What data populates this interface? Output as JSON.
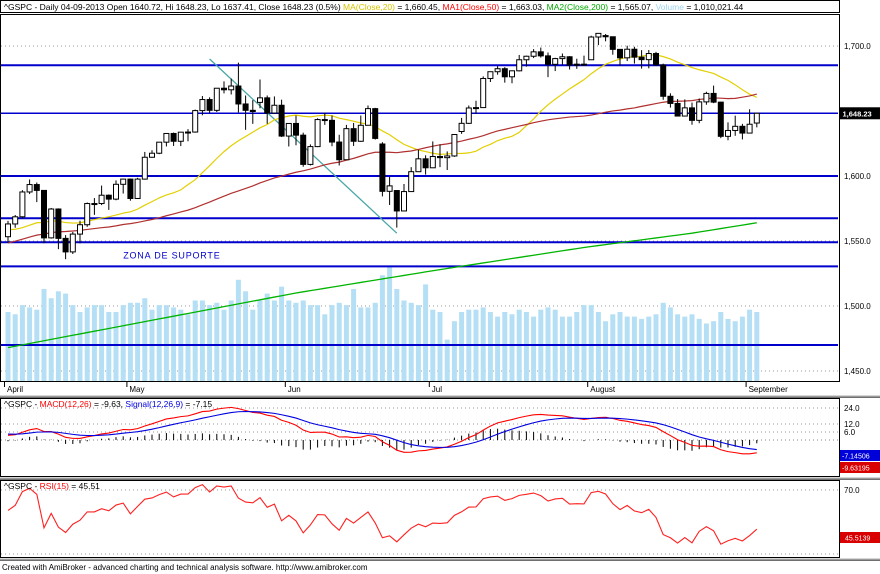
{
  "footer": {
    "text": "Created with AmiBroker - advanced charting and technical analysis software. http://www.amibroker.com"
  },
  "titles": {
    "main_segments": [
      {
        "text": "^GSPC - Daily 04-09-2013 Open 1640.72, Hi 1648.23, Lo 1637.41, Close 1648.23 (0.5%) ",
        "color": "#000000"
      },
      {
        "text": "MA(Close,20)",
        "color": "#d8c400"
      },
      {
        "text": " = 1,660.45, ",
        "color": "#000000"
      },
      {
        "text": "MA1(Close,50)",
        "color": "#ff0000"
      },
      {
        "text": " = 1,663.03, ",
        "color": "#000000"
      },
      {
        "text": "MA2(Close,200)",
        "color": "#00a800"
      },
      {
        "text": " = 1,565.07, ",
        "color": "#000000"
      },
      {
        "text": "Volume",
        "color": "#9fd4f0"
      },
      {
        "text": " = 1,010,021.44",
        "color": "#000000"
      }
    ],
    "macd_segments": [
      {
        "text": "^GSPC - ",
        "color": "#000000"
      },
      {
        "text": "MACD(12,26)",
        "color": "#ff0000"
      },
      {
        "text": " = -9.63, ",
        "color": "#000000"
      },
      {
        "text": "Signal(12,26,9)",
        "color": "#0000e0"
      },
      {
        "text": " = -7.15",
        "color": "#000000"
      }
    ],
    "rsi_segments": [
      {
        "text": "^GSPC - ",
        "color": "#000000"
      },
      {
        "text": "RSI(15)",
        "color": "#ff0000"
      },
      {
        "text": " = 45.51",
        "color": "#000000"
      }
    ]
  },
  "chart_data": {
    "type": "candlestick",
    "symbol": "^GSPC",
    "interval": "Daily",
    "last_bar": {
      "date": "04-09-2013",
      "open": 1640.72,
      "high": 1648.23,
      "low": 1637.41,
      "close": 1648.23,
      "change_pct": "0.5%"
    },
    "indicator_values": {
      "ma20": "1,660.45",
      "ma50": "1,663.03",
      "ma200": "1,565.07",
      "volume": "1,010,021.44",
      "macd": "-9.63",
      "macd_signal": "-7.15",
      "rsi": "45.51"
    },
    "main": {
      "ylim": [
        1443,
        1724.6
      ],
      "grid": true,
      "y_axis": [
        {
          "label": "1,700.0",
          "value": 1700
        },
        {
          "label": "1,600.0",
          "value": 1600
        },
        {
          "label": "1,550.0",
          "value": 1550
        },
        {
          "label": "1,500.0",
          "value": 1500
        },
        {
          "label": "1,450.0",
          "value": 1450
        }
      ],
      "price_box": {
        "label": "1,648.23",
        "value": 1648.23,
        "bg": "#000000",
        "fg": "#ffffff"
      },
      "months": [
        {
          "label": "April",
          "index": 0
        },
        {
          "label": "May",
          "index": 17
        },
        {
          "label": "Jun",
          "index": 39
        },
        {
          "label": "Jul",
          "index": 59
        },
        {
          "label": "August",
          "index": 81
        },
        {
          "label": "September",
          "index": 103
        }
      ],
      "support_lines": [
        1685.2,
        1600,
        1567.5,
        1549,
        1530.5,
        1470
      ],
      "close_line": 1648.23,
      "trendline": {
        "bar1": 28,
        "value1": 1690,
        "bar2": 54,
        "value2": 1556
      },
      "ma200_points": [
        [
          0,
          1468
        ],
        [
          20,
          1489
        ],
        [
          40,
          1510
        ],
        [
          60,
          1528
        ],
        [
          80,
          1545
        ],
        [
          95,
          1556
        ],
        [
          104,
          1564
        ]
      ],
      "zone_label": {
        "text": "ZONA DE SUPORTE",
        "bar": 16,
        "value": 1539
      },
      "colors": {
        "ma20": "#e3cf00",
        "ma50": "#b03030",
        "ma200": "#00b400",
        "volume": "#b5dff5",
        "support": "#0000cc",
        "trendline": "#4aa6a6",
        "up": "#ffffff",
        "down": "#000000"
      },
      "candles": [
        [
          1553.3,
          1565.5,
          1548.6,
          1563.1,
          3.0
        ],
        [
          1563.1,
          1570.0,
          1560.2,
          1568.6,
          2.9
        ],
        [
          1568.6,
          1589.1,
          1567.3,
          1587.7,
          3.3
        ],
        [
          1587.7,
          1597.3,
          1586.1,
          1593.4,
          3.2
        ],
        [
          1593.4,
          1595.0,
          1579.9,
          1588.9,
          3.1
        ],
        [
          1588.9,
          1589.0,
          1548.3,
          1552.4,
          4.0
        ],
        [
          1552.4,
          1575.4,
          1551.8,
          1574.6,
          3.6
        ],
        [
          1574.6,
          1575.1,
          1543.7,
          1552.0,
          3.9
        ],
        [
          1552.0,
          1554.5,
          1536.0,
          1541.6,
          3.8
        ],
        [
          1541.6,
          1556.9,
          1540.0,
          1555.3,
          3.3
        ],
        [
          1555.3,
          1565.6,
          1548.2,
          1562.5,
          3.0
        ],
        [
          1562.5,
          1579.6,
          1560.9,
          1578.8,
          3.2
        ],
        [
          1578.8,
          1583.0,
          1570.1,
          1578.8,
          3.3
        ],
        [
          1578.8,
          1592.6,
          1577.6,
          1585.2,
          3.3
        ],
        [
          1585.2,
          1585.8,
          1573.9,
          1582.2,
          3.0
        ],
        [
          1582.2,
          1596.6,
          1581.3,
          1593.6,
          3.0
        ],
        [
          1593.6,
          1597.8,
          1586.5,
          1597.6,
          3.3
        ],
        [
          1597.6,
          1598.0,
          1581.0,
          1582.7,
          3.4
        ],
        [
          1582.7,
          1598.6,
          1582.3,
          1597.6,
          3.4
        ],
        [
          1597.6,
          1618.5,
          1597.2,
          1614.4,
          3.6
        ],
        [
          1614.4,
          1619.8,
          1614.0,
          1617.5,
          3.1
        ],
        [
          1617.5,
          1626.0,
          1616.8,
          1626.0,
          3.3
        ],
        [
          1626.0,
          1632.8,
          1622.7,
          1632.7,
          3.3
        ],
        [
          1632.7,
          1633.4,
          1623.1,
          1626.7,
          3.2
        ],
        [
          1626.7,
          1633.7,
          1623.0,
          1633.7,
          3.1
        ],
        [
          1633.7,
          1636.0,
          1626.7,
          1633.8,
          2.9
        ],
        [
          1633.8,
          1651.1,
          1633.3,
          1650.3,
          3.5
        ],
        [
          1650.3,
          1661.5,
          1646.7,
          1658.8,
          3.5
        ],
        [
          1658.8,
          1660.5,
          1648.6,
          1650.5,
          3.3
        ],
        [
          1650.5,
          1667.6,
          1649.2,
          1667.5,
          3.4
        ],
        [
          1667.5,
          1672.8,
          1663.5,
          1666.3,
          3.1
        ],
        [
          1666.3,
          1674.9,
          1662.7,
          1669.2,
          3.5
        ],
        [
          1669.2,
          1687.2,
          1648.9,
          1655.4,
          4.4
        ],
        [
          1655.4,
          1661.9,
          1635.5,
          1650.5,
          3.9
        ],
        [
          1650.5,
          1658.4,
          1640.1,
          1649.6,
          3.1
        ],
        [
          1656.6,
          1674.2,
          1652.1,
          1660.1,
          3.5
        ],
        [
          1660.1,
          1661.9,
          1640.1,
          1648.4,
          3.8
        ],
        [
          1648.4,
          1661.2,
          1648.0,
          1654.4,
          3.5
        ],
        [
          1654.4,
          1658.7,
          1630.0,
          1630.7,
          4.1
        ],
        [
          1630.7,
          1640.7,
          1622.7,
          1640.4,
          3.5
        ],
        [
          1640.4,
          1646.5,
          1623.6,
          1631.4,
          3.4
        ],
        [
          1631.4,
          1633.3,
          1607.1,
          1608.9,
          3.5
        ],
        [
          1608.9,
          1624.3,
          1608.1,
          1622.6,
          3.3
        ],
        [
          1622.6,
          1644.4,
          1622.2,
          1643.4,
          3.3
        ],
        [
          1643.4,
          1648.7,
          1639.3,
          1642.8,
          2.9
        ],
        [
          1642.8,
          1646.5,
          1622.9,
          1626.1,
          3.3
        ],
        [
          1626.1,
          1631.7,
          1608.1,
          1612.5,
          3.4
        ],
        [
          1612.5,
          1639.3,
          1612.2,
          1636.4,
          3.3
        ],
        [
          1636.4,
          1640.8,
          1623.1,
          1626.7,
          4.0
        ],
        [
          1626.7,
          1646.5,
          1626.3,
          1639.0,
          3.2
        ],
        [
          1639.0,
          1654.2,
          1639.0,
          1651.8,
          3.2
        ],
        [
          1651.8,
          1652.4,
          1628.0,
          1628.9,
          3.4
        ],
        [
          1624.6,
          1626.0,
          1584.3,
          1588.2,
          4.6
        ],
        [
          1588.2,
          1599.2,
          1577.7,
          1592.4,
          5.0
        ],
        [
          1588.8,
          1589.0,
          1560.3,
          1573.1,
          4.0
        ],
        [
          1573.1,
          1593.8,
          1572.9,
          1588.0,
          3.5
        ],
        [
          1588.0,
          1606.8,
          1588.0,
          1603.3,
          3.4
        ],
        [
          1603.3,
          1620.1,
          1603.1,
          1613.2,
          3.3
        ],
        [
          1613.2,
          1615.9,
          1601.1,
          1606.3,
          4.2
        ],
        [
          1606.3,
          1626.6,
          1606.1,
          1615.0,
          3.1
        ],
        [
          1615.0,
          1624.3,
          1606.8,
          1614.1,
          3.0
        ],
        [
          1614.1,
          1618.9,
          1604.6,
          1615.4,
          1.8
        ],
        [
          1615.4,
          1632.1,
          1614.7,
          1631.9,
          2.6
        ],
        [
          1634.2,
          1644.7,
          1632.4,
          1640.5,
          3.0
        ],
        [
          1640.5,
          1654.2,
          1640.1,
          1652.3,
          3.1
        ],
        [
          1652.3,
          1657.9,
          1647.7,
          1652.6,
          3.1
        ],
        [
          1652.6,
          1676.6,
          1652.4,
          1675.0,
          3.2
        ],
        [
          1675.0,
          1680.2,
          1672.3,
          1680.2,
          3.0
        ],
        [
          1680.2,
          1684.5,
          1677.9,
          1682.5,
          2.8
        ],
        [
          1682.5,
          1683.7,
          1671.8,
          1676.3,
          3.0
        ],
        [
          1676.3,
          1681.2,
          1671.3,
          1680.9,
          2.9
        ],
        [
          1680.9,
          1693.1,
          1680.4,
          1689.4,
          3.1
        ],
        [
          1689.4,
          1692.6,
          1684.1,
          1692.1,
          3.0
        ],
        [
          1692.1,
          1697.6,
          1690.7,
          1695.5,
          2.8
        ],
        [
          1695.5,
          1698.8,
          1691.1,
          1692.4,
          3.1
        ],
        [
          1692.4,
          1695.0,
          1676.0,
          1685.9,
          3.2
        ],
        [
          1685.9,
          1690.9,
          1680.7,
          1690.3,
          3.1
        ],
        [
          1690.3,
          1694.2,
          1685.5,
          1691.7,
          2.8
        ],
        [
          1691.7,
          1692.2,
          1681.9,
          1685.3,
          2.8
        ],
        [
          1685.3,
          1690.2,
          1682.4,
          1686.0,
          3.0
        ],
        [
          1686.0,
          1692.6,
          1684.9,
          1685.7,
          3.3
        ],
        [
          1689.4,
          1707.9,
          1689.3,
          1706.9,
          3.3
        ],
        [
          1706.9,
          1709.7,
          1700.7,
          1709.7,
          3.0
        ],
        [
          1708.0,
          1709.2,
          1703.6,
          1707.1,
          2.6
        ],
        [
          1707.1,
          1707.2,
          1693.3,
          1697.4,
          2.9
        ],
        [
          1697.4,
          1697.4,
          1684.9,
          1690.9,
          3.0
        ],
        [
          1690.9,
          1700.2,
          1688.4,
          1697.5,
          2.8
        ],
        [
          1697.5,
          1699.4,
          1686.5,
          1691.4,
          2.8
        ],
        [
          1691.4,
          1696.8,
          1682.6,
          1689.5,
          2.7
        ],
        [
          1689.5,
          1696.9,
          1682.8,
          1694.2,
          2.8
        ],
        [
          1694.2,
          1695.5,
          1684.8,
          1685.4,
          2.9
        ],
        [
          1685.4,
          1686.4,
          1658.6,
          1661.3,
          3.4
        ],
        [
          1661.3,
          1663.6,
          1652.6,
          1655.8,
          3.2
        ],
        [
          1655.8,
          1659.2,
          1645.8,
          1646.1,
          2.9
        ],
        [
          1646.1,
          1658.9,
          1646.1,
          1652.4,
          2.8
        ],
        [
          1652.4,
          1656.4,
          1639.4,
          1642.8,
          2.9
        ],
        [
          1642.8,
          1659.6,
          1640.6,
          1657.0,
          2.7
        ],
        [
          1657.0,
          1664.8,
          1654.8,
          1663.5,
          2.5
        ],
        [
          1663.5,
          1669.5,
          1656.0,
          1656.8,
          2.6
        ],
        [
          1656.8,
          1657.0,
          1629.1,
          1630.5,
          3.0
        ],
        [
          1630.5,
          1641.2,
          1627.5,
          1635.0,
          2.7
        ],
        [
          1635.0,
          1646.4,
          1630.9,
          1638.2,
          2.6
        ],
        [
          1638.2,
          1640.1,
          1628.1,
          1633.0,
          2.8
        ],
        [
          1633.0,
          1651.3,
          1633.0,
          1639.8,
          3.1
        ],
        [
          1640.72,
          1648.23,
          1637.41,
          1648.23,
          3.0
        ]
      ],
      "pre_closes": [
        1498,
        1503,
        1508,
        1512,
        1516,
        1512,
        1519,
        1523,
        1528,
        1534,
        1539,
        1543,
        1546,
        1551,
        1556,
        1551,
        1544,
        1548,
        1552,
        1557,
        1563,
        1560,
        1554,
        1556,
        1559,
        1563,
        1556,
        1548,
        1545,
        1551,
        1556,
        1561,
        1563,
        1556,
        1551,
        1546,
        1552,
        1557,
        1562,
        1563,
        1560,
        1552,
        1556,
        1561,
        1563,
        1566,
        1569,
        1562,
        1556,
        1553.3
      ]
    },
    "macd": {
      "fast": 12,
      "slow": 26,
      "signal_period": 9,
      "y_axis": [
        {
          "label": "24.0",
          "value": 24
        },
        {
          "label": "12.0",
          "value": 12
        },
        {
          "label": "6.0",
          "value": 6
        }
      ],
      "value_boxes": [
        {
          "label": "-7.14506",
          "bg": "#0000d8"
        },
        {
          "label": "-9.63195",
          "bg": "#d80000"
        }
      ],
      "colors": {
        "macd": "#ff0000",
        "signal": "#0000e0",
        "histogram": "#000000"
      }
    },
    "rsi": {
      "period": 15,
      "y_axis": [
        {
          "label": "70.0",
          "value": 70
        }
      ],
      "grid_values": [
        70,
        30
      ],
      "value_box": {
        "label": "45.5139",
        "bg": "#d80000"
      },
      "color": "#ff2020"
    }
  }
}
